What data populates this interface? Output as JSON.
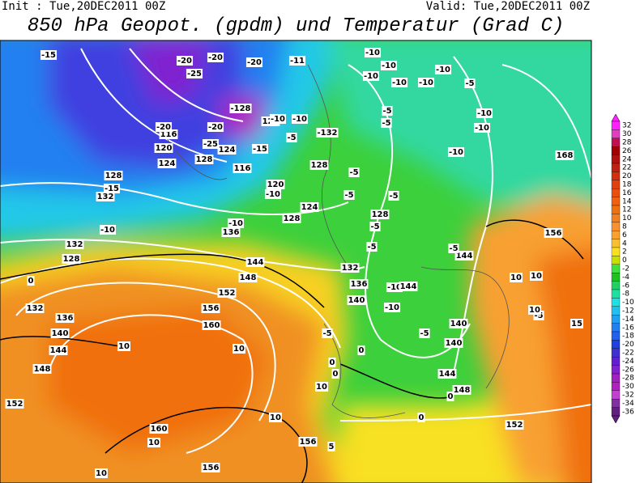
{
  "header": {
    "init": "Init : Tue,20DEC2011 00Z",
    "valid": "Valid: Tue,20DEC2011 00Z",
    "title": "850 hPa Geopot. (gpdm) und Temperatur (Grad C)"
  },
  "colorbar": {
    "labels": [
      32,
      30,
      28,
      26,
      24,
      22,
      20,
      18,
      16,
      14,
      12,
      10,
      8,
      6,
      4,
      2,
      0,
      -2,
      -4,
      -6,
      -8,
      -10,
      -12,
      -14,
      -16,
      -18,
      -20,
      -22,
      -24,
      -26,
      -28,
      -30,
      -32,
      -34,
      -36
    ]
  },
  "contour_labels": [
    "-15",
    "116",
    "120",
    "124",
    "128",
    "132",
    "-15",
    "-10",
    "132",
    "128",
    "0",
    "132",
    "136",
    "140",
    "144",
    "148",
    "152",
    "-20",
    "-20",
    "-25",
    "-128",
    "124",
    "-10",
    "-15",
    "124",
    "128",
    "116",
    "120",
    "-10",
    "124",
    "128",
    "136",
    "-10",
    "144",
    "148",
    "152",
    "156",
    "160",
    "10",
    "10",
    "160",
    "10",
    "10",
    "156",
    "156",
    "10",
    "-10",
    "-10",
    "-10",
    "-10",
    "-5",
    "-5",
    "-5",
    "-132",
    "-10",
    "-5",
    "128",
    "-5",
    "-5",
    "-5",
    "128",
    "-5",
    "-5",
    "132",
    "136",
    "140",
    "-10",
    "144",
    "-10",
    "-5",
    "140",
    "140",
    "144",
    "148",
    "152",
    "-10",
    "-10",
    "-10",
    "168",
    "156",
    "144",
    "-5",
    "10",
    "10",
    "-5",
    "10",
    "15",
    "0",
    "0",
    "-5",
    "0",
    "0",
    "0",
    "10",
    "5",
    "-10",
    "-10",
    "-20",
    "-20",
    "-25",
    "-20",
    "-11"
  ]
}
